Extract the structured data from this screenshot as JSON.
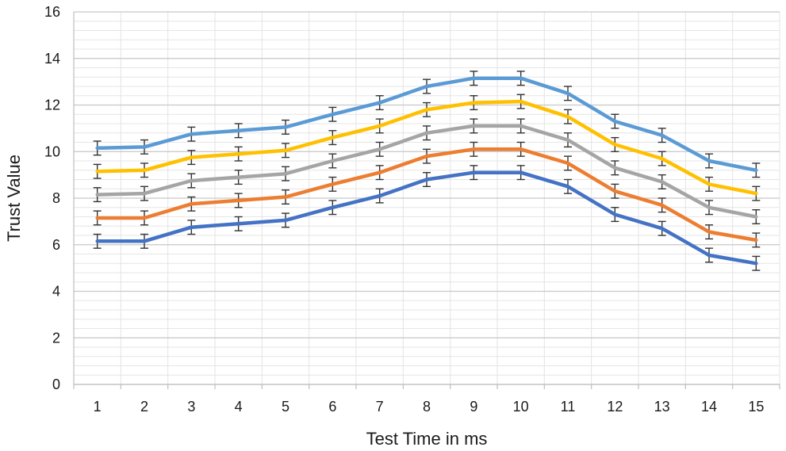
{
  "chart_data": {
    "type": "line",
    "title": "",
    "xlabel": "Test Time in ms",
    "ylabel": "Trust Value",
    "x": [
      1,
      2,
      3,
      4,
      5,
      6,
      7,
      8,
      9,
      10,
      11,
      12,
      13,
      14,
      15
    ],
    "ylim": [
      0,
      16
    ],
    "yticks": [
      0,
      2,
      4,
      6,
      8,
      10,
      12,
      14,
      16
    ],
    "grid": true,
    "legend": "none",
    "error_bar": 0.3,
    "series": [
      {
        "color": "#5b9bd5",
        "values": [
          10.15,
          10.2,
          10.75,
          10.9,
          11.05,
          11.6,
          12.1,
          12.8,
          13.15,
          13.15,
          12.5,
          11.3,
          10.7,
          9.6,
          9.2
        ]
      },
      {
        "color": "#ffc000",
        "values": [
          9.15,
          9.2,
          9.75,
          9.9,
          10.05,
          10.6,
          11.1,
          11.8,
          12.1,
          12.15,
          11.5,
          10.3,
          9.7,
          8.6,
          8.2
        ]
      },
      {
        "color": "#a5a5a5",
        "values": [
          8.15,
          8.2,
          8.75,
          8.9,
          9.05,
          9.6,
          10.1,
          10.8,
          11.1,
          11.1,
          10.5,
          9.3,
          8.7,
          7.6,
          7.2
        ]
      },
      {
        "color": "#ed7d31",
        "values": [
          7.15,
          7.15,
          7.75,
          7.9,
          8.05,
          8.6,
          9.1,
          9.8,
          10.1,
          10.1,
          9.5,
          8.3,
          7.7,
          6.55,
          6.2
        ]
      },
      {
        "color": "#4472c4",
        "values": [
          6.15,
          6.15,
          6.75,
          6.9,
          7.05,
          7.6,
          8.1,
          8.8,
          9.1,
          9.1,
          8.5,
          7.3,
          6.7,
          5.55,
          5.2
        ]
      }
    ]
  }
}
